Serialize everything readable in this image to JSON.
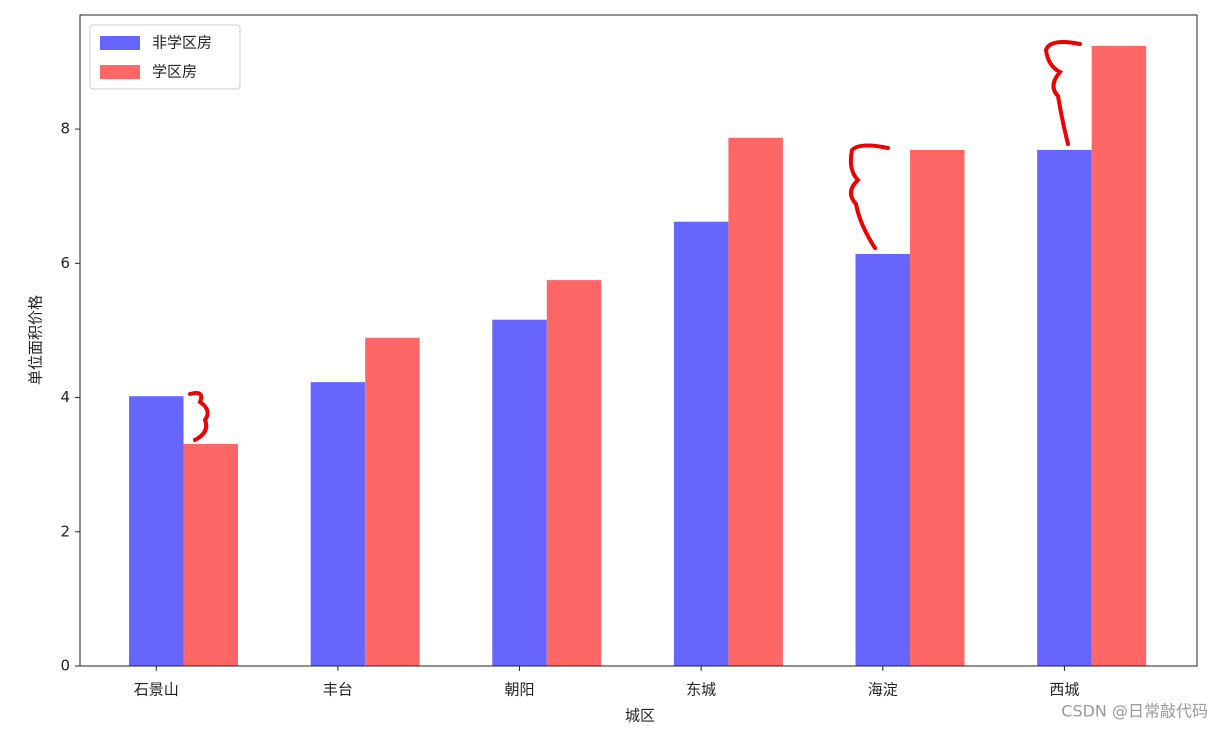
{
  "chart_data": {
    "type": "bar",
    "xlabel": "城区",
    "ylabel": "单位面积价格",
    "categories": [
      "石景山",
      "丰台",
      "朝阳",
      "东城",
      "海淀",
      "西城"
    ],
    "series": [
      {
        "name": "非学区房",
        "color": "#6666ff",
        "values": [
          4.02,
          4.23,
          5.16,
          6.62,
          6.14,
          7.69
        ]
      },
      {
        "name": "学区房",
        "color": "#ff6666",
        "values": [
          3.31,
          4.89,
          5.75,
          7.87,
          7.69,
          9.24
        ]
      }
    ],
    "ylim": [
      0,
      9.7
    ],
    "yticks": [
      0,
      2,
      4,
      6,
      8
    ],
    "legend": "upper left",
    "watermark": "CSDN @日常敲代码"
  }
}
